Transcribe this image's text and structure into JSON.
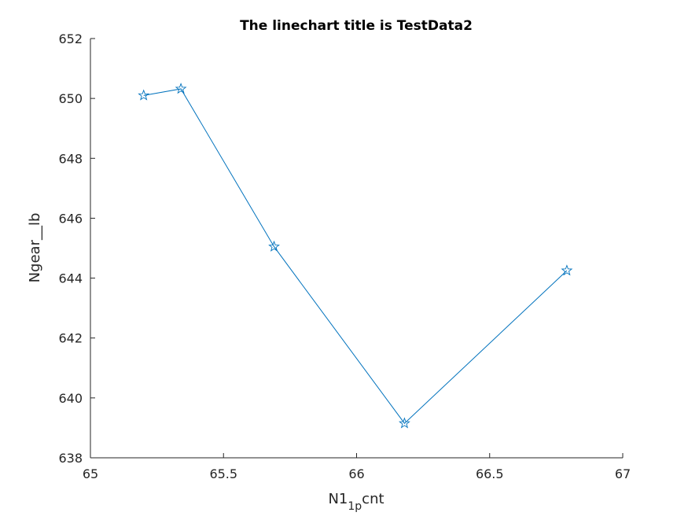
{
  "chart_data": {
    "type": "line",
    "title": "The linechart title is TestData2",
    "xlabel_main": "N1",
    "xlabel_sub": "1p",
    "xlabel_tail": "cnt",
    "ylabel": "Ngear__lb",
    "xlim": [
      65,
      67
    ],
    "ylim": [
      638,
      652
    ],
    "xticks": [
      "65",
      "65.5",
      "66",
      "66.5",
      "67"
    ],
    "yticks": [
      "638",
      "640",
      "642",
      "644",
      "646",
      "648",
      "650",
      "652"
    ],
    "grid": false,
    "marker": "star",
    "line_color": "#0072BD",
    "series": [
      {
        "x": [
          65.2,
          65.34,
          65.69,
          66.18,
          66.79
        ],
        "y": [
          650.1,
          650.32,
          645.05,
          639.15,
          644.25
        ]
      }
    ]
  }
}
